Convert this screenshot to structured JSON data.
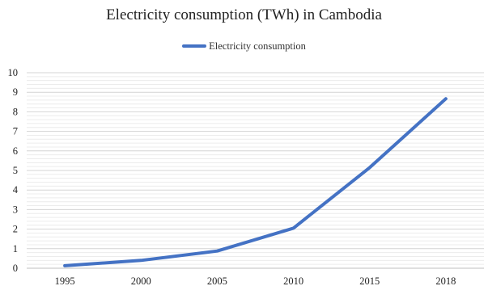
{
  "chart_data": {
    "type": "line",
    "title": "Electricity consumption (TWh) in Cambodia",
    "xlabel": "",
    "ylabel": "",
    "categories": [
      "1995",
      "2000",
      "2005",
      "2010",
      "2015",
      "2018"
    ],
    "series": [
      {
        "name": "Electricity consumption",
        "values": [
          0.13,
          0.4,
          0.88,
          2.05,
          5.15,
          8.67
        ],
        "color": "#4472c4"
      }
    ],
    "ylim": [
      0,
      10
    ],
    "yticks": [
      0,
      1,
      2,
      3,
      4,
      5,
      6,
      7,
      8,
      9,
      10
    ],
    "grid": true,
    "legend_position": "top"
  }
}
